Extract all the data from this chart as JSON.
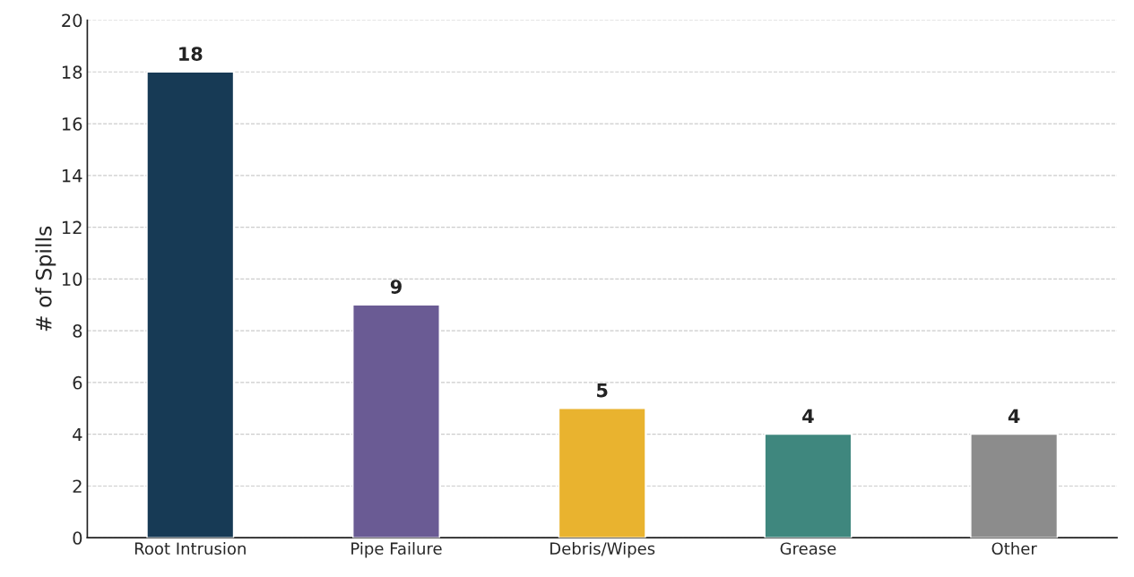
{
  "chart_data": {
    "type": "bar",
    "ylabel": "# of Spills",
    "categories": [
      "Root Intrusion",
      "Pipe Failure",
      "Debris/Wipes",
      "Grease",
      "Other"
    ],
    "values": [
      18,
      9,
      5,
      4,
      4
    ],
    "colors": [
      "#173a55",
      "#6a5b94",
      "#e9b32f",
      "#3f877e",
      "#8c8c8c"
    ],
    "ylim": [
      0,
      20
    ],
    "yticks": [
      0,
      2,
      4,
      6,
      8,
      10,
      12,
      14,
      16,
      18,
      20
    ],
    "grid": "y",
    "data_labels": true
  }
}
